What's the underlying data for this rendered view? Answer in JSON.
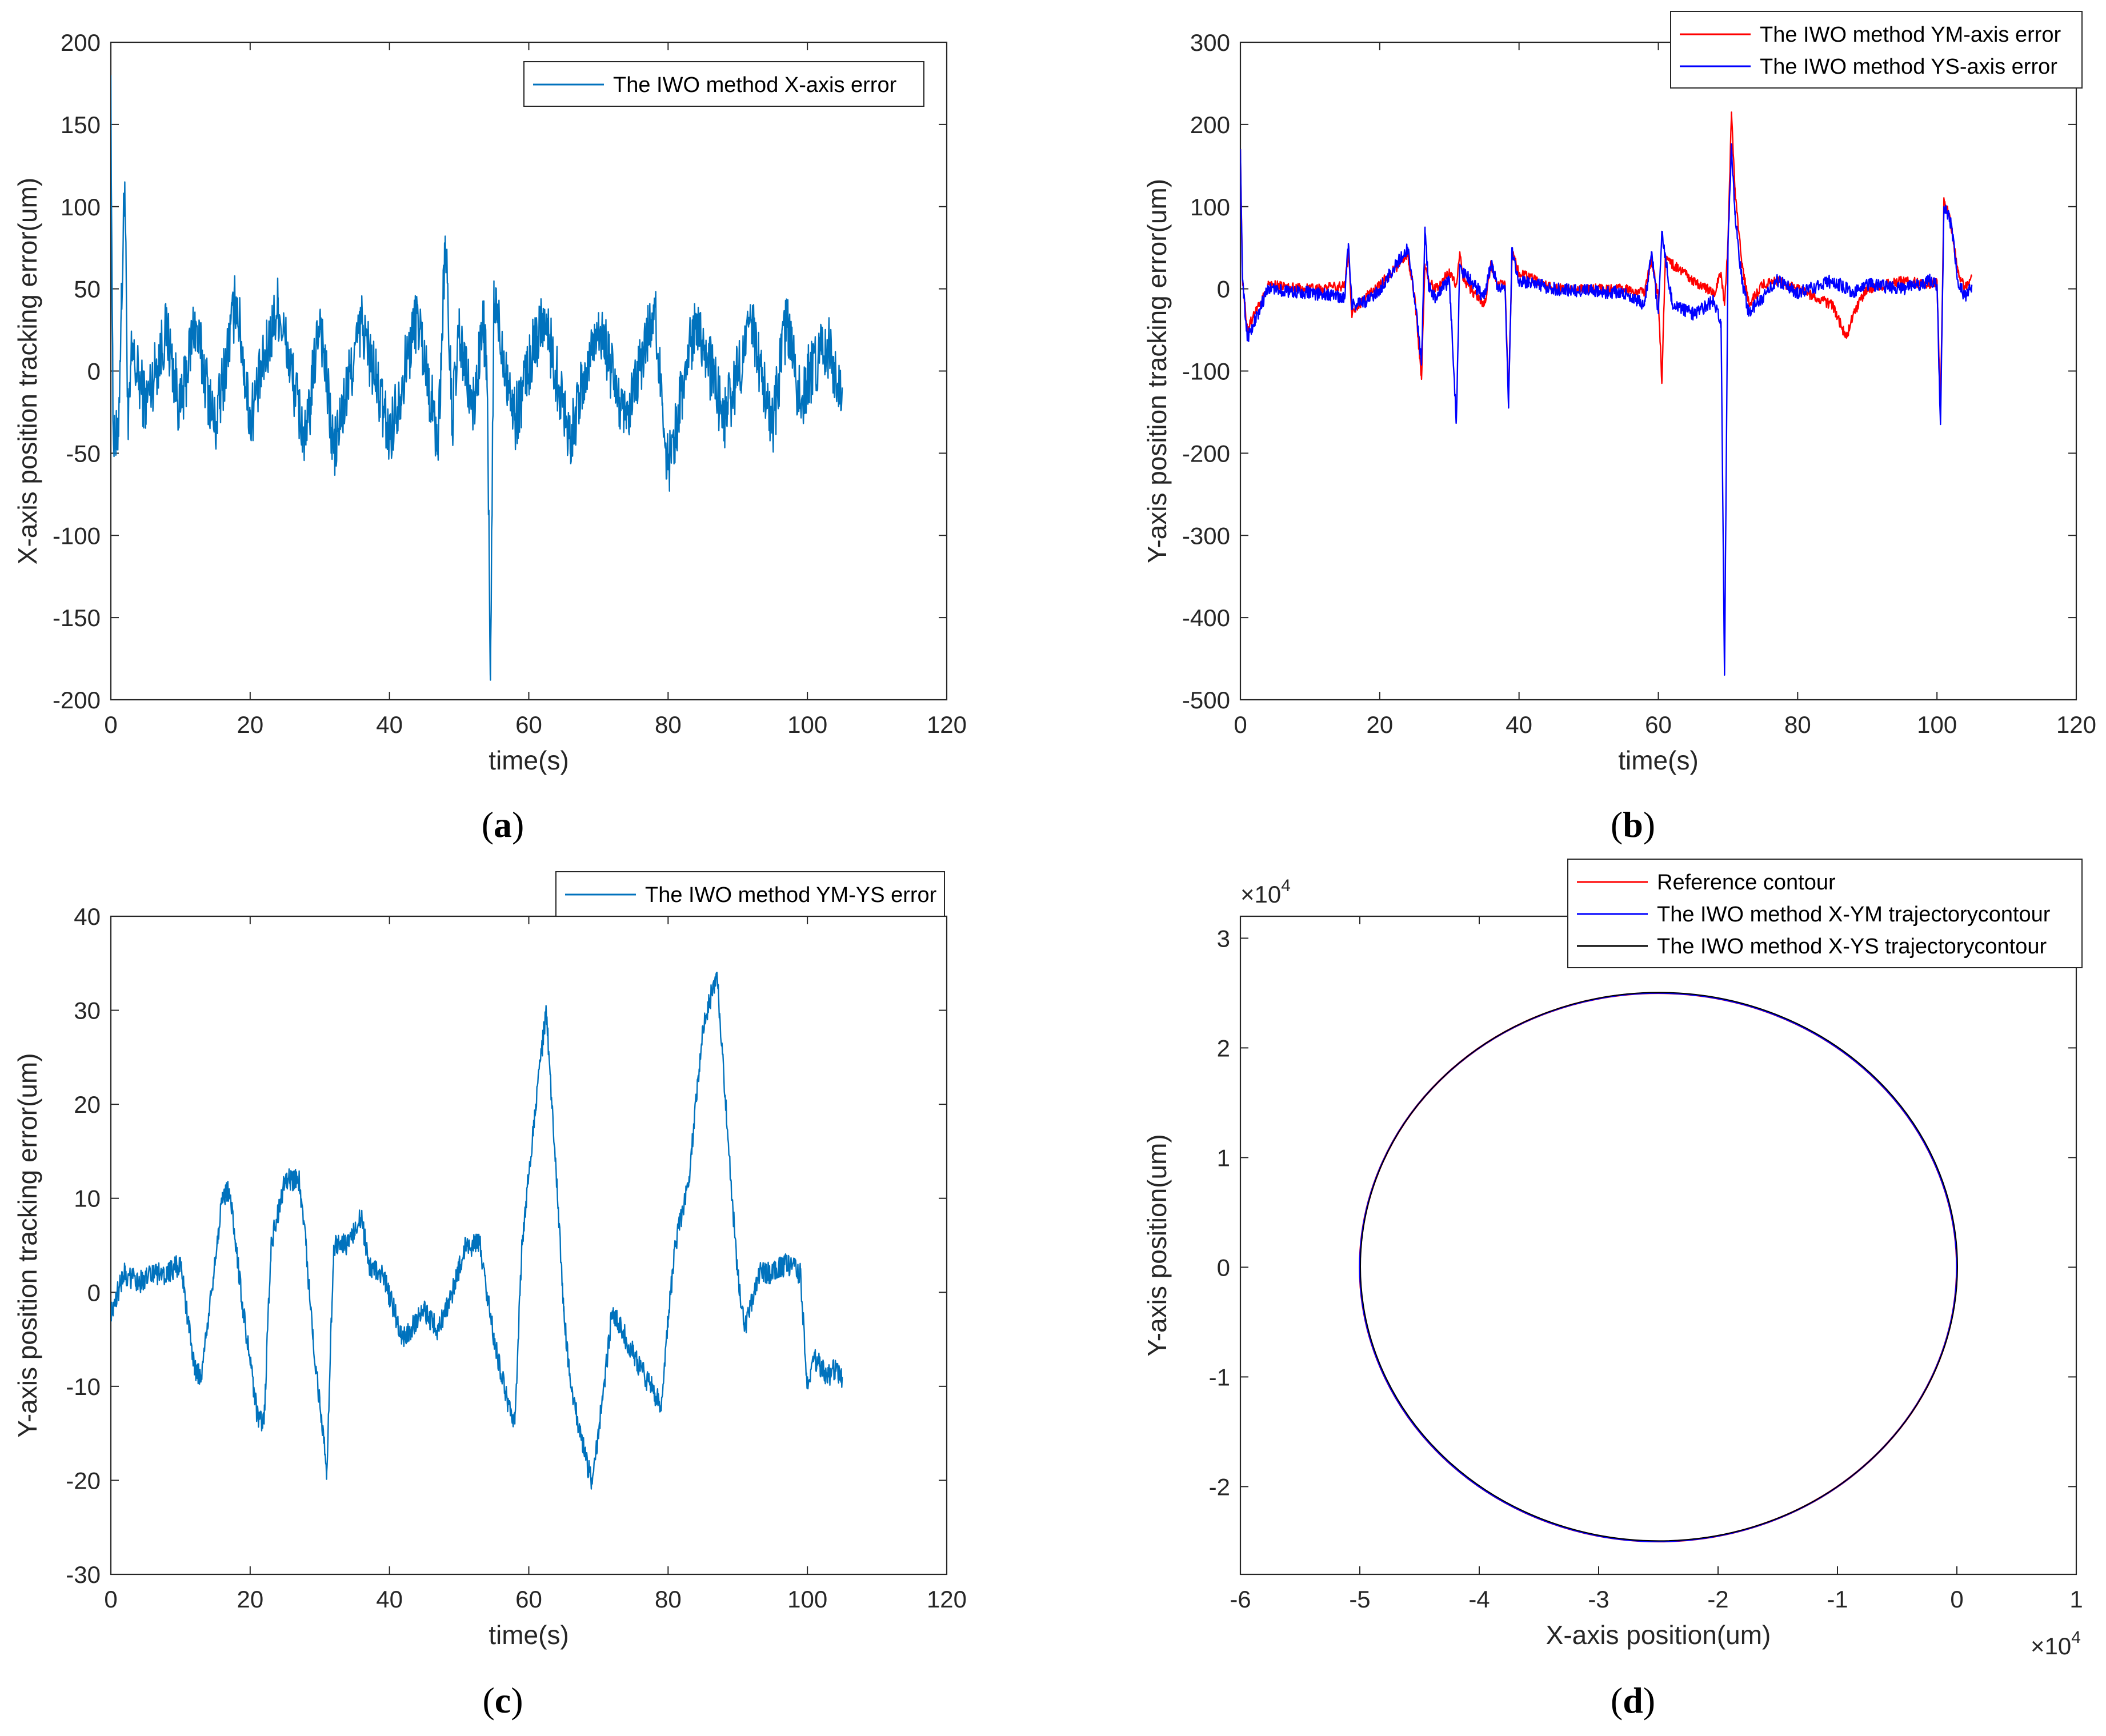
{
  "chart_data": [
    {
      "id": "a",
      "panel_label": "a",
      "type": "line",
      "xlabel": "time(s)",
      "ylabel": "X-axis position tracking error(um)",
      "xlim": [
        0,
        120
      ],
      "ylim": [
        -200,
        200
      ],
      "xticks": [
        0,
        20,
        40,
        60,
        80,
        100,
        120
      ],
      "yticks": [
        -200,
        -150,
        -100,
        -50,
        0,
        50,
        100,
        150,
        200
      ],
      "legend_position": "top-right",
      "series": [
        {
          "name": "The IWO method X-axis error",
          "color": "#0072BD",
          "x": [
            0,
            0.3,
            1,
            1.5,
            2,
            2.5,
            3,
            5,
            8,
            10,
            12,
            15,
            18,
            20,
            24,
            28,
            30,
            32,
            36,
            40,
            44,
            47,
            48,
            49,
            50,
            52,
            53.5,
            54,
            54.5,
            55,
            58,
            62,
            66,
            70,
            74,
            78,
            80,
            84,
            88,
            92,
            95,
            97,
            99,
            100,
            102,
            103,
            104,
            105
          ],
          "values": [
            180,
            -30,
            -48,
            40,
            115,
            -40,
            10,
            -20,
            25,
            -25,
            30,
            -35,
            45,
            -30,
            40,
            -45,
            35,
            -50,
            30,
            -40,
            35,
            -45,
            82,
            -30,
            20,
            -25,
            30,
            -5,
            -188,
            45,
            -30,
            35,
            -40,
            30,
            -35,
            40,
            -60,
            35,
            -30,
            28,
            -35,
            30,
            -20,
            -5,
            10,
            14,
            0,
            -10
          ],
          "noise_amplitude": 20
        }
      ]
    },
    {
      "id": "b",
      "panel_label": "b",
      "type": "line",
      "xlabel": "time(s)",
      "ylabel": "Y-axis position tracking error(um)",
      "xlim": [
        0,
        120
      ],
      "ylim": [
        -500,
        300
      ],
      "xticks": [
        0,
        20,
        40,
        60,
        80,
        100,
        120
      ],
      "yticks": [
        -500,
        -400,
        -300,
        -200,
        -100,
        0,
        100,
        200,
        300
      ],
      "legend_position": "top-right",
      "series": [
        {
          "name": "The IWO method YM-axis error",
          "color": "#FF0000",
          "x": [
            0,
            0.3,
            1,
            2,
            4,
            10,
            15,
            15.5,
            16,
            18,
            20,
            24,
            25,
            26,
            26.5,
            27,
            28,
            30,
            31,
            31.5,
            32,
            35,
            36,
            37,
            38,
            38.5,
            39,
            40,
            45,
            55,
            58,
            59,
            60,
            60.5,
            61,
            62,
            65,
            68,
            69,
            69.5,
            70,
            70.5,
            71,
            72,
            73,
            75,
            77,
            80,
            85,
            87,
            88,
            90,
            95,
            99,
            100,
            100.5,
            101,
            102,
            103,
            104,
            105
          ],
          "values": [
            170,
            10,
            -50,
            -30,
            5,
            0,
            3,
            45,
            -30,
            -10,
            5,
            40,
            -5,
            -110,
            30,
            10,
            0,
            20,
            5,
            45,
            10,
            -20,
            30,
            5,
            5,
            -130,
            45,
            20,
            0,
            0,
            -5,
            35,
            -10,
            -115,
            40,
            30,
            10,
            -5,
            20,
            -20,
            60,
            215,
            120,
            30,
            -20,
            5,
            10,
            0,
            -20,
            -60,
            -30,
            0,
            10,
            5,
            10,
            -150,
            110,
            80,
            20,
            0,
            15
          ],
          "noise_amplitude": 6
        },
        {
          "name": "The IWO method YS-axis error",
          "color": "#0000FF",
          "x": [
            0,
            0.3,
            1,
            2,
            4,
            10,
            15,
            15.5,
            16,
            18,
            20,
            24,
            25,
            26,
            26.5,
            27,
            28,
            30,
            31,
            31.5,
            32,
            35,
            36,
            37,
            38,
            38.5,
            39,
            40,
            45,
            55,
            58,
            59,
            60,
            60.5,
            61,
            62,
            65,
            68,
            69,
            69.5,
            70,
            70.5,
            71,
            72,
            73,
            75,
            77,
            80,
            85,
            87,
            88,
            90,
            95,
            99,
            100,
            100.5,
            101,
            102,
            103,
            104,
            105
          ],
          "values": [
            170,
            10,
            -60,
            -40,
            0,
            -5,
            -10,
            55,
            -20,
            -15,
            0,
            50,
            -10,
            -90,
            75,
            5,
            -10,
            10,
            -160,
            30,
            20,
            -10,
            30,
            0,
            0,
            -145,
            50,
            10,
            0,
            -5,
            -20,
            45,
            -30,
            70,
            40,
            -20,
            -30,
            -15,
            -40,
            -470,
            50,
            175,
            90,
            10,
            -30,
            -10,
            10,
            -5,
            10,
            0,
            -5,
            5,
            0,
            10,
            5,
            -165,
            100,
            80,
            10,
            -10,
            5
          ],
          "noise_amplitude": 8
        }
      ]
    },
    {
      "id": "c",
      "panel_label": "c",
      "type": "line",
      "xlabel": "time(s)",
      "ylabel": "Y-axis position tracking error(um)",
      "xlim": [
        0,
        120
      ],
      "ylim": [
        -30,
        40
      ],
      "xticks": [
        0,
        20,
        40,
        60,
        80,
        100,
        120
      ],
      "yticks": [
        -30,
        -20,
        -10,
        0,
        10,
        20,
        30,
        40
      ],
      "legend_position": "top-right",
      "series": [
        {
          "name": "The IWO method YM-YS error",
          "color": "#0072BD",
          "x": [
            0,
            2,
            4,
            6,
            8,
            10,
            12,
            13,
            14,
            16,
            17,
            19,
            21,
            22,
            23,
            25,
            27,
            28,
            29,
            30,
            31,
            32,
            34,
            36,
            37,
            39,
            42,
            44,
            45,
            47,
            49,
            51,
            53,
            54,
            55,
            57,
            58,
            59,
            61,
            62.5,
            64,
            65,
            66,
            68,
            69,
            70,
            72,
            74,
            76,
            79,
            80,
            81,
            83,
            85,
            87,
            89,
            90,
            91,
            93,
            95,
            97,
            99,
            100,
            101,
            102,
            103,
            104,
            105
          ],
          "values": [
            -2,
            2,
            1,
            2,
            2,
            3,
            -8,
            -9,
            -3,
            10,
            11,
            -2,
            -13,
            -14,
            5,
            12,
            12,
            5,
            -5,
            -12,
            -19,
            5,
            5,
            8,
            3,
            2,
            -5,
            -3,
            -2,
            -4,
            0,
            5,
            5,
            0,
            -5,
            -12,
            -14,
            5,
            20,
            30,
            12,
            -2,
            -10,
            -17,
            -20,
            -15,
            -2,
            -5,
            -8,
            -12,
            -3,
            5,
            12,
            28,
            34,
            12,
            2,
            -4,
            2,
            2,
            3,
            2,
            -10,
            -7,
            -8,
            -9,
            -8,
            -9
          ],
          "noise_amplitude": 1.2
        }
      ]
    },
    {
      "id": "d",
      "panel_label": "d",
      "type": "line",
      "xlabel": "X-axis position(um)",
      "ylabel": "Y-axis position(um)",
      "x_exponent": "×10",
      "x_exponent_power": "4",
      "y_exponent": "×10",
      "y_exponent_power": "4",
      "xlim": [
        -6,
        1
      ],
      "ylim": [
        -2.8,
        3.2
      ],
      "xticks": [
        -6,
        -5,
        -4,
        -3,
        -2,
        -1,
        0,
        1
      ],
      "yticks": [
        -2,
        -1,
        0,
        1,
        2,
        3
      ],
      "legend_position": "top-right",
      "circle": {
        "center_x": -2.5,
        "center_y": 0,
        "radius": 2.5
      },
      "series": [
        {
          "name": "Reference contour",
          "color": "#FF0000"
        },
        {
          "name": "The IWO method X-YM trajectorycontour",
          "color": "#0000FF"
        },
        {
          "name": "The IWO method X-YS trajectorycontour",
          "color": "#000000"
        }
      ]
    }
  ]
}
